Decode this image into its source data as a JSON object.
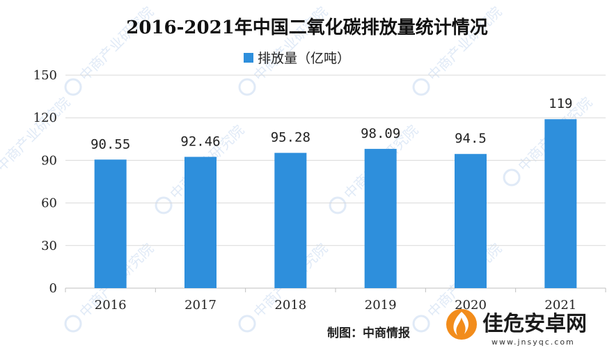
{
  "chart_data": {
    "type": "bar",
    "title": "2016-2021年中国二氧化碳排放量统计情况",
    "legend": [
      "排放量（亿吨）"
    ],
    "legend_position": "top-center",
    "categories": [
      "2016",
      "2017",
      "2018",
      "2019",
      "2020",
      "2021"
    ],
    "series": [
      {
        "name": "排放量（亿吨）",
        "values": [
          90.55,
          92.46,
          95.28,
          98.09,
          94.5,
          119
        ],
        "labels": [
          "90.55",
          "92.46",
          "95.28",
          "98.09",
          "94.5",
          "119"
        ]
      }
    ],
    "ylim": [
      0,
      150
    ],
    "yticks": [
      "0",
      "30",
      "60",
      "90",
      "120",
      "150"
    ],
    "grid": true,
    "bar_color": "#2e8fdc"
  },
  "source_note": "制图：中商情报",
  "watermark": "中商产业研究院",
  "brand": {
    "name": "佳危安卓网",
    "url": "www.jnsyqc.com"
  }
}
